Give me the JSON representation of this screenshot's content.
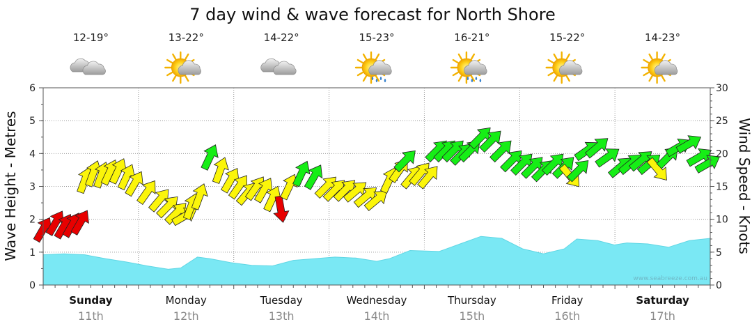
{
  "title": "7 day wind & wave forecast for North Shore",
  "watermark": "www.seabreeze.com.au",
  "days": [
    {
      "name": "Sunday",
      "date": "11th",
      "bold": true,
      "temp": "12-19°",
      "icon": "cloudy-icon"
    },
    {
      "name": "Monday",
      "date": "12th",
      "bold": false,
      "temp": "13-22°",
      "icon": "partly-cloudy-sun-icon"
    },
    {
      "name": "Tuesday",
      "date": "13th",
      "bold": false,
      "temp": "14-22°",
      "icon": "cloudy-icon"
    },
    {
      "name": "Wednesday",
      "date": "14th",
      "bold": false,
      "temp": "15-23°",
      "icon": "sun-cloud-rain-icon"
    },
    {
      "name": "Thursday",
      "date": "15th",
      "bold": false,
      "temp": "16-21°",
      "icon": "sun-cloud-rain-icon"
    },
    {
      "name": "Friday",
      "date": "16th",
      "bold": false,
      "temp": "15-22°",
      "icon": "partly-cloudy-sun-icon"
    },
    {
      "name": "Saturday",
      "date": "17th",
      "bold": true,
      "temp": "14-23°",
      "icon": "partly-cloudy-sun-icon"
    }
  ],
  "chart_data": {
    "type": "area",
    "ylabel_left": "Wave Height - Metres",
    "ylabel_right": "Wind Speed - Knots",
    "left_ticks": [
      "0",
      "1",
      "2",
      "3",
      "4",
      "5",
      "6"
    ],
    "right_ticks": [
      "0",
      "5",
      "10",
      "15",
      "20",
      "25",
      "30"
    ],
    "ylim_left": [
      0,
      6
    ],
    "ylim_right": [
      0,
      30
    ],
    "grid": true,
    "colors": {
      "wave_fill": "#7ae8f4",
      "calm": "#e80000",
      "moderate": "#fbf50a",
      "strong": "#16ee16"
    },
    "wave_height": [
      [
        0,
        0.92
      ],
      [
        0.5,
        0.95
      ],
      [
        1,
        0.92
      ],
      [
        1.5,
        0.8
      ],
      [
        2,
        0.7
      ],
      [
        2.5,
        0.58
      ],
      [
        3,
        0.48
      ],
      [
        3.3,
        0.52
      ],
      [
        3.7,
        0.85
      ],
      [
        4,
        0.8
      ],
      [
        4.5,
        0.68
      ],
      [
        5,
        0.6
      ],
      [
        5.5,
        0.58
      ],
      [
        6,
        0.75
      ],
      [
        6.5,
        0.8
      ],
      [
        7,
        0.85
      ],
      [
        7.5,
        0.82
      ],
      [
        8,
        0.72
      ],
      [
        8.3,
        0.8
      ],
      [
        8.8,
        1.05
      ],
      [
        9.5,
        1.02
      ],
      [
        10,
        1.25
      ],
      [
        10.5,
        1.48
      ],
      [
        11,
        1.42
      ],
      [
        11.5,
        1.1
      ],
      [
        12,
        0.95
      ],
      [
        12.5,
        1.1
      ],
      [
        12.8,
        1.4
      ],
      [
        13.3,
        1.35
      ],
      [
        13.7,
        1.22
      ],
      [
        14,
        1.28
      ],
      [
        14.5,
        1.25
      ],
      [
        15,
        1.15
      ],
      [
        15.5,
        1.35
      ],
      [
        16,
        1.42
      ]
    ],
    "wind": [
      [
        0,
        8.5,
        30,
        "calm"
      ],
      [
        0.3,
        9.5,
        30,
        "calm"
      ],
      [
        0.5,
        9,
        30,
        "calm"
      ],
      [
        0.7,
        9.2,
        30,
        "calm"
      ],
      [
        0.9,
        9.6,
        30,
        "calm"
      ],
      [
        1,
        16,
        20,
        "moderate"
      ],
      [
        1.2,
        17,
        20,
        "moderate"
      ],
      [
        1.4,
        16.8,
        20,
        "moderate"
      ],
      [
        1.6,
        17.2,
        25,
        "moderate"
      ],
      [
        1.8,
        17.4,
        25,
        "moderate"
      ],
      [
        2,
        16.5,
        25,
        "moderate"
      ],
      [
        2.2,
        15.5,
        30,
        "moderate"
      ],
      [
        2.5,
        14.2,
        35,
        "moderate"
      ],
      [
        2.8,
        13,
        40,
        "moderate"
      ],
      [
        3,
        12,
        45,
        "moderate"
      ],
      [
        3.2,
        11,
        45,
        "moderate"
      ],
      [
        3.4,
        10.5,
        60,
        "moderate"
      ],
      [
        3.55,
        12,
        20,
        "moderate"
      ],
      [
        3.75,
        13.5,
        20,
        "moderate"
      ],
      [
        4,
        19.5,
        25,
        "strong"
      ],
      [
        4.25,
        17.5,
        20,
        "moderate"
      ],
      [
        4.5,
        16,
        30,
        "moderate"
      ],
      [
        4.7,
        15,
        35,
        "moderate"
      ],
      [
        4.9,
        14,
        40,
        "moderate"
      ],
      [
        5.1,
        14.8,
        35,
        "moderate"
      ],
      [
        5.3,
        14.5,
        30,
        "moderate"
      ],
      [
        5.5,
        13.2,
        25,
        "moderate"
      ],
      [
        5.7,
        11.5,
        170,
        "calm"
      ],
      [
        5.9,
        15,
        25,
        "moderate"
      ],
      [
        6.2,
        17,
        25,
        "strong"
      ],
      [
        6.5,
        16.5,
        30,
        "strong"
      ],
      [
        6.8,
        15,
        45,
        "moderate"
      ],
      [
        7,
        14.5,
        45,
        "moderate"
      ],
      [
        7.25,
        14.5,
        45,
        "moderate"
      ],
      [
        7.5,
        14.3,
        50,
        "moderate"
      ],
      [
        7.75,
        13.5,
        50,
        "moderate"
      ],
      [
        8,
        13,
        50,
        "moderate"
      ],
      [
        8.3,
        16,
        25,
        "moderate"
      ],
      [
        8.55,
        17.5,
        35,
        "moderate"
      ],
      [
        8.7,
        19,
        45,
        "strong"
      ],
      [
        8.85,
        16.5,
        40,
        "moderate"
      ],
      [
        9.05,
        17,
        40,
        "moderate"
      ],
      [
        9.25,
        16.5,
        40,
        "moderate"
      ],
      [
        9.45,
        20.5,
        45,
        "strong"
      ],
      [
        9.65,
        20.5,
        45,
        "strong"
      ],
      [
        9.85,
        20.5,
        45,
        "strong"
      ],
      [
        10.05,
        20,
        45,
        "strong"
      ],
      [
        10.25,
        20.5,
        45,
        "strong"
      ],
      [
        10.5,
        22.5,
        45,
        "strong"
      ],
      [
        10.75,
        22,
        45,
        "strong"
      ],
      [
        11,
        20.5,
        45,
        "strong"
      ],
      [
        11.25,
        19,
        45,
        "strong"
      ],
      [
        11.5,
        18.5,
        45,
        "strong"
      ],
      [
        11.75,
        18,
        45,
        "strong"
      ],
      [
        12,
        17.5,
        45,
        "strong"
      ],
      [
        12.25,
        18.5,
        45,
        "strong"
      ],
      [
        12.5,
        18,
        45,
        "strong"
      ],
      [
        12.65,
        16.5,
        140,
        "moderate"
      ],
      [
        12.85,
        17.5,
        45,
        "strong"
      ],
      [
        13.05,
        20.5,
        55,
        "strong"
      ],
      [
        13.3,
        21,
        50,
        "strong"
      ],
      [
        13.55,
        19.5,
        55,
        "strong"
      ],
      [
        13.85,
        18,
        50,
        "strong"
      ],
      [
        14.1,
        18.5,
        50,
        "strong"
      ],
      [
        14.35,
        19,
        50,
        "strong"
      ],
      [
        14.55,
        18.5,
        50,
        "strong"
      ],
      [
        14.75,
        17.5,
        140,
        "moderate"
      ],
      [
        15,
        19.5,
        45,
        "strong"
      ],
      [
        15.25,
        21,
        60,
        "strong"
      ],
      [
        15.5,
        21.5,
        60,
        "strong"
      ],
      [
        15.75,
        19.5,
        60,
        "strong"
      ],
      [
        15.95,
        18.5,
        60,
        "strong"
      ]
    ]
  }
}
